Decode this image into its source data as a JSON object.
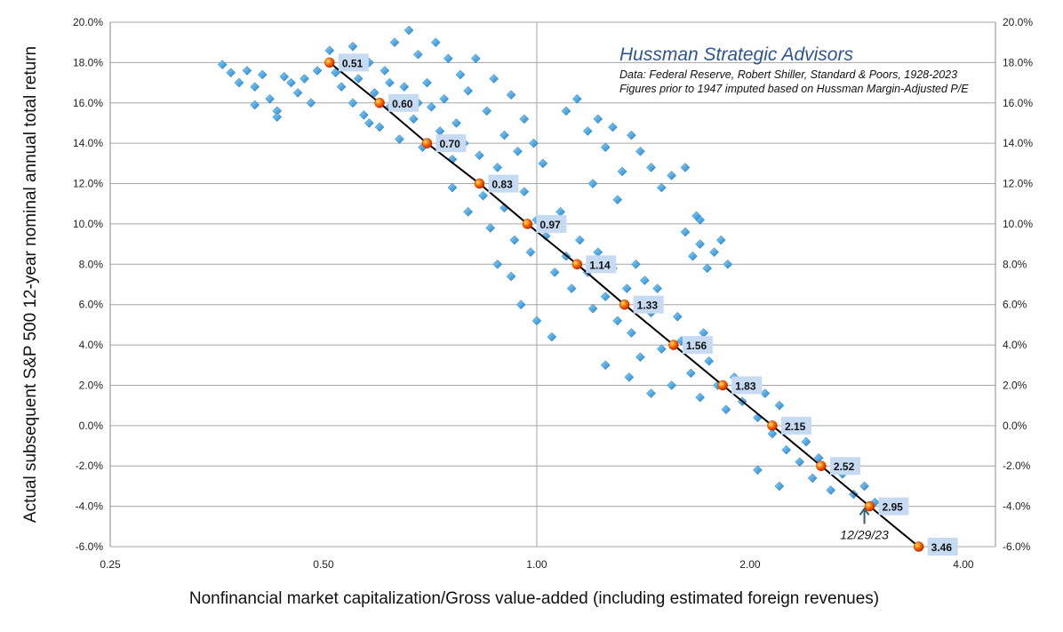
{
  "chart_data": {
    "type": "scatter",
    "title": "Hussman Strategic Advisors",
    "subtitle_lines": [
      "Data: Federal Reserve, Robert Shiller, Standard & Poors, 1928-2023",
      "Figures prior to 1947 imputed based on Hussman Margin-Adjusted P/E"
    ],
    "xlabel": "Nonfinancial market capitalization/Gross value-added (including estimated foreign revenues)",
    "ylabel": "Actual subsequent S&P 500 12-year nominal annual total return",
    "x_scale": "log2",
    "xlim": [
      0.25,
      4.44
    ],
    "ylim": [
      -6,
      20
    ],
    "x_ticks": [
      "0.25",
      "0.50",
      "1.00",
      "2.00",
      "4.00"
    ],
    "x_tick_values": [
      0.25,
      0.5,
      1,
      2,
      4
    ],
    "y_ticks": [
      "-6.0%",
      "-4.0%",
      "-2.0%",
      "0.0%",
      "2.0%",
      "4.0%",
      "6.0%",
      "8.0%",
      "10.0%",
      "12.0%",
      "14.0%",
      "16.0%",
      "18.0%",
      "20.0%"
    ],
    "y_tick_values": [
      -6,
      -4,
      -2,
      0,
      2,
      4,
      6,
      8,
      10,
      12,
      14,
      16,
      18,
      20
    ],
    "grid": {
      "horizontal": true,
      "vertical_at": [
        1.0
      ]
    },
    "colors": {
      "scatter": "#2e9fe0",
      "fit_line": "#000000",
      "fit_point": "#ff4a00",
      "fit_label_bg": "#c6daf2",
      "title": "#2f5597"
    },
    "scatter_points": [
      [
        0.36,
        17.9
      ],
      [
        0.37,
        17.5
      ],
      [
        0.38,
        17.0
      ],
      [
        0.39,
        17.6
      ],
      [
        0.4,
        16.8
      ],
      [
        0.41,
        17.4
      ],
      [
        0.42,
        16.2
      ],
      [
        0.43,
        15.6
      ],
      [
        0.44,
        17.3
      ],
      [
        0.45,
        17.0
      ],
      [
        0.46,
        16.5
      ],
      [
        0.47,
        17.2
      ],
      [
        0.48,
        16.0
      ],
      [
        0.49,
        17.6
      ],
      [
        0.4,
        15.9
      ],
      [
        0.43,
        15.3
      ],
      [
        0.51,
        18.6
      ],
      [
        0.52,
        17.5
      ],
      [
        0.53,
        16.8
      ],
      [
        0.54,
        18.2
      ],
      [
        0.55,
        16.0
      ],
      [
        0.56,
        17.2
      ],
      [
        0.57,
        15.4
      ],
      [
        0.58,
        18.0
      ],
      [
        0.59,
        16.5
      ],
      [
        0.6,
        14.8
      ],
      [
        0.61,
        17.6
      ],
      [
        0.62,
        15.8
      ],
      [
        0.63,
        19.0
      ],
      [
        0.64,
        14.2
      ],
      [
        0.65,
        16.8
      ],
      [
        0.66,
        19.6
      ],
      [
        0.67,
        15.2
      ],
      [
        0.68,
        18.4
      ],
      [
        0.69,
        13.8
      ],
      [
        0.7,
        17.0
      ],
      [
        0.71,
        15.8
      ],
      [
        0.72,
        19.0
      ],
      [
        0.73,
        14.6
      ],
      [
        0.74,
        16.2
      ],
      [
        0.75,
        18.2
      ],
      [
        0.76,
        13.2
      ],
      [
        0.77,
        15.0
      ],
      [
        0.78,
        17.4
      ],
      [
        0.79,
        14.0
      ],
      [
        0.8,
        16.6
      ],
      [
        0.82,
        18.2
      ],
      [
        0.83,
        13.4
      ],
      [
        0.85,
        15.6
      ],
      [
        0.87,
        17.2
      ],
      [
        0.88,
        12.8
      ],
      [
        0.9,
        14.4
      ],
      [
        0.92,
        16.4
      ],
      [
        0.94,
        13.6
      ],
      [
        0.96,
        15.2
      ],
      [
        0.99,
        14.0
      ],
      [
        1.02,
        13.0
      ],
      [
        0.58,
        15.0
      ],
      [
        0.62,
        17.0
      ],
      [
        0.68,
        16.0
      ],
      [
        0.55,
        18.8
      ],
      [
        1.1,
        15.6
      ],
      [
        1.14,
        16.2
      ],
      [
        1.18,
        14.6
      ],
      [
        1.22,
        15.2
      ],
      [
        1.25,
        13.8
      ],
      [
        1.28,
        14.8
      ],
      [
        1.32,
        12.6
      ],
      [
        1.36,
        14.4
      ],
      [
        1.4,
        13.6
      ],
      [
        1.45,
        12.8
      ],
      [
        1.5,
        11.8
      ],
      [
        1.55,
        12.4
      ],
      [
        1.2,
        12.0
      ],
      [
        1.3,
        11.2
      ],
      [
        1.62,
        12.8
      ],
      [
        1.7,
        10.2
      ],
      [
        0.76,
        11.8
      ],
      [
        0.8,
        10.6
      ],
      [
        0.84,
        11.4
      ],
      [
        0.86,
        9.8
      ],
      [
        0.88,
        8.0
      ],
      [
        0.9,
        10.8
      ],
      [
        0.93,
        9.2
      ],
      [
        0.96,
        11.6
      ],
      [
        0.98,
        8.6
      ],
      [
        1.0,
        10.2
      ],
      [
        1.03,
        9.4
      ],
      [
        1.06,
        7.6
      ],
      [
        1.08,
        10.6
      ],
      [
        1.1,
        8.4
      ],
      [
        1.12,
        6.8
      ],
      [
        1.15,
        9.2
      ],
      [
        1.18,
        7.6
      ],
      [
        1.2,
        5.8
      ],
      [
        1.22,
        8.6
      ],
      [
        1.25,
        6.4
      ],
      [
        1.28,
        7.8
      ],
      [
        1.3,
        5.2
      ],
      [
        1.34,
        6.8
      ],
      [
        1.36,
        4.6
      ],
      [
        1.38,
        8.0
      ],
      [
        0.95,
        6.0
      ],
      [
        1.0,
        5.2
      ],
      [
        1.05,
        4.4
      ],
      [
        0.92,
        7.4
      ],
      [
        1.42,
        7.2
      ],
      [
        1.45,
        5.6
      ],
      [
        1.48,
        6.8
      ],
      [
        1.62,
        9.6
      ],
      [
        1.66,
        8.4
      ],
      [
        1.7,
        9.0
      ],
      [
        1.74,
        7.8
      ],
      [
        1.78,
        8.6
      ],
      [
        1.82,
        9.2
      ],
      [
        1.86,
        8.0
      ],
      [
        1.68,
        10.4
      ],
      [
        1.35,
        2.4
      ],
      [
        1.4,
        3.4
      ],
      [
        1.45,
        1.6
      ],
      [
        1.5,
        3.8
      ],
      [
        1.55,
        2.0
      ],
      [
        1.6,
        4.2
      ],
      [
        1.65,
        2.6
      ],
      [
        1.7,
        1.4
      ],
      [
        1.75,
        3.2
      ],
      [
        1.8,
        2.0
      ],
      [
        1.85,
        0.8
      ],
      [
        1.9,
        2.4
      ],
      [
        1.95,
        1.2
      ],
      [
        2.0,
        2.2
      ],
      [
        2.05,
        0.4
      ],
      [
        2.1,
        1.6
      ],
      [
        2.15,
        -0.4
      ],
      [
        2.2,
        1.0
      ],
      [
        2.25,
        -1.2
      ],
      [
        2.3,
        0.2
      ],
      [
        2.35,
        -1.8
      ],
      [
        2.4,
        -0.8
      ],
      [
        2.45,
        -2.6
      ],
      [
        2.5,
        -1.6
      ],
      [
        2.6,
        -3.2
      ],
      [
        2.7,
        -2.4
      ],
      [
        2.8,
        -3.4
      ],
      [
        2.9,
        -3.0
      ],
      [
        3.0,
        -3.8
      ],
      [
        3.1,
        -4.2
      ],
      [
        1.58,
        5.4
      ],
      [
        1.72,
        4.6
      ],
      [
        1.25,
        3.0
      ],
      [
        2.05,
        -2.2
      ],
      [
        2.2,
        -3.0
      ]
    ],
    "fit_points": [
      {
        "x": 0.51,
        "y": 18,
        "label": "0.51"
      },
      {
        "x": 0.6,
        "y": 16,
        "label": "0.60"
      },
      {
        "x": 0.7,
        "y": 14,
        "label": "0.70"
      },
      {
        "x": 0.83,
        "y": 12,
        "label": "0.83"
      },
      {
        "x": 0.97,
        "y": 10,
        "label": "0.97"
      },
      {
        "x": 1.14,
        "y": 8,
        "label": "1.14"
      },
      {
        "x": 1.33,
        "y": 6,
        "label": "1.33"
      },
      {
        "x": 1.56,
        "y": 4,
        "label": "1.56"
      },
      {
        "x": 1.83,
        "y": 2,
        "label": "1.83"
      },
      {
        "x": 2.15,
        "y": 0,
        "label": "2.15"
      },
      {
        "x": 2.52,
        "y": -2,
        "label": "2.52"
      },
      {
        "x": 2.95,
        "y": -4,
        "label": "2.95"
      },
      {
        "x": 3.46,
        "y": -6,
        "label": "3.46"
      }
    ],
    "annotation": {
      "label": "12/29/23",
      "x": 2.9,
      "y": -3.9
    }
  }
}
